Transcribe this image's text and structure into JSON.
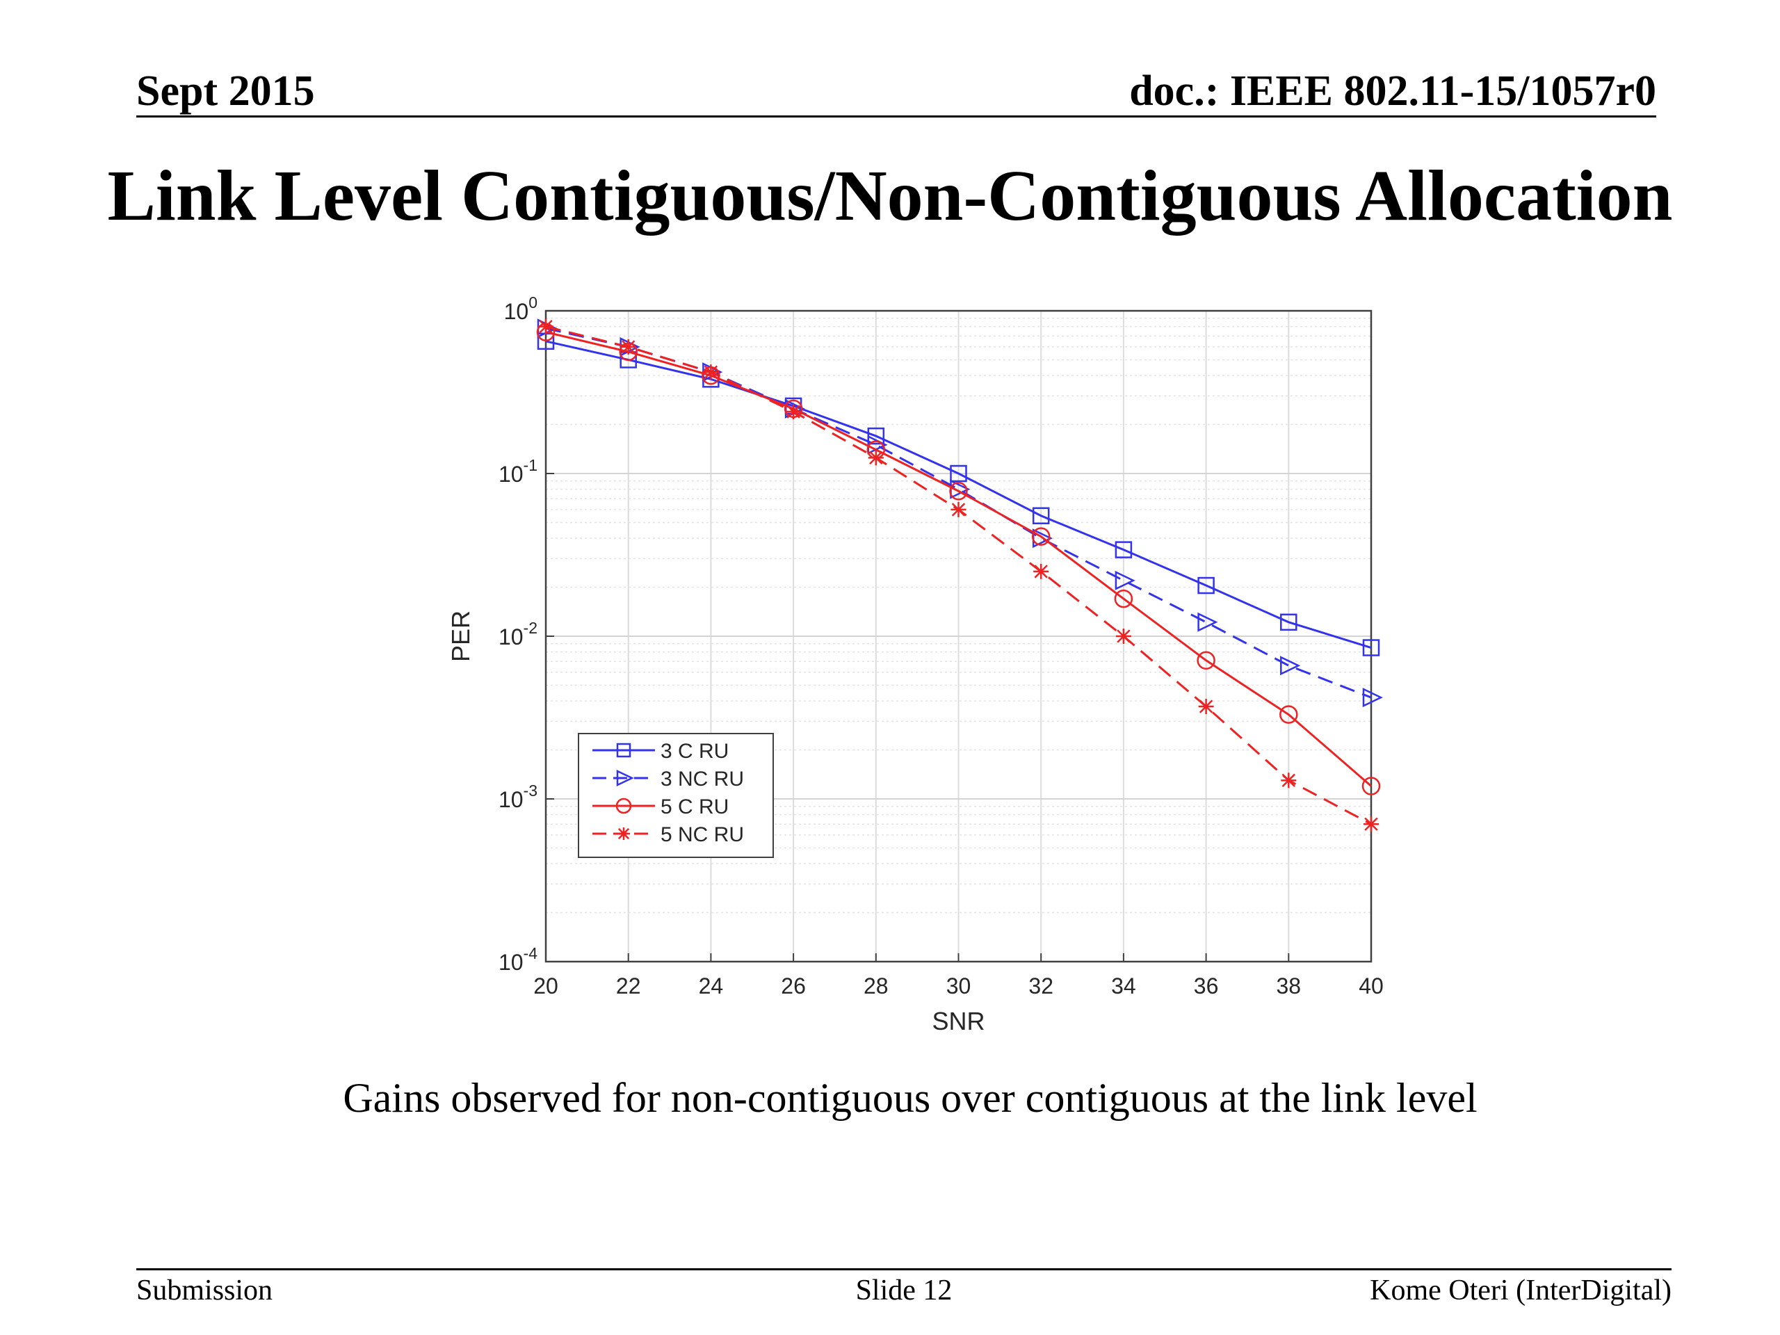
{
  "slide": {
    "date": "Sept 2015",
    "doc_id": "doc.: IEEE 802.11-15/1057r0",
    "title": "Link Level Contiguous/Non-Contiguous Allocation",
    "caption": "Gains observed for non-contiguous over contiguous at the link level",
    "footer_left": "Submission",
    "footer_center": "Slide 12",
    "footer_right": "Kome Oteri (InterDigital)"
  },
  "chart_data": {
    "type": "line",
    "title": "",
    "xlabel": "SNR",
    "ylabel": "PER",
    "xlim": [
      20,
      40
    ],
    "ylim": [
      0.0001,
      1
    ],
    "yscale": "log",
    "grid": true,
    "legend_position": "bottom-left",
    "x": [
      20,
      22,
      24,
      26,
      28,
      30,
      32,
      34,
      36,
      38,
      40
    ],
    "x_ticks": [
      "20",
      "22",
      "24",
      "26",
      "28",
      "30",
      "32",
      "34",
      "36",
      "38",
      "40"
    ],
    "y_ticks": [
      {
        "base": "10",
        "exp": "0",
        "value": 1
      },
      {
        "base": "10",
        "exp": "-1",
        "value": 0.1
      },
      {
        "base": "10",
        "exp": "-2",
        "value": 0.01
      },
      {
        "base": "10",
        "exp": "-3",
        "value": 0.001
      },
      {
        "base": "10",
        "exp": "-4",
        "value": 0.0001
      }
    ],
    "series": [
      {
        "name": "3 C RU",
        "color": "#3333ee",
        "dash": "solid",
        "marker": "square",
        "values": [
          0.65,
          0.5,
          0.38,
          0.26,
          0.17,
          0.1,
          0.055,
          0.034,
          0.0205,
          0.0122,
          0.0085
        ]
      },
      {
        "name": "3 NC RU",
        "color": "#3333ee",
        "dash": "dashed",
        "marker": "triangle-right",
        "values": [
          0.78,
          0.6,
          0.42,
          0.25,
          0.15,
          0.08,
          0.04,
          0.022,
          0.0122,
          0.0066,
          0.0042
        ]
      },
      {
        "name": "5 C RU",
        "color": "#ee2222",
        "dash": "solid",
        "marker": "circle",
        "values": [
          0.74,
          0.56,
          0.4,
          0.25,
          0.14,
          0.078,
          0.041,
          0.017,
          0.0071,
          0.0033,
          0.0012
        ]
      },
      {
        "name": "5 NC RU",
        "color": "#ee2222",
        "dash": "dashed",
        "marker": "asterisk",
        "values": [
          0.8,
          0.6,
          0.42,
          0.24,
          0.125,
          0.06,
          0.025,
          0.01,
          0.0037,
          0.0013,
          0.0007
        ]
      }
    ]
  }
}
